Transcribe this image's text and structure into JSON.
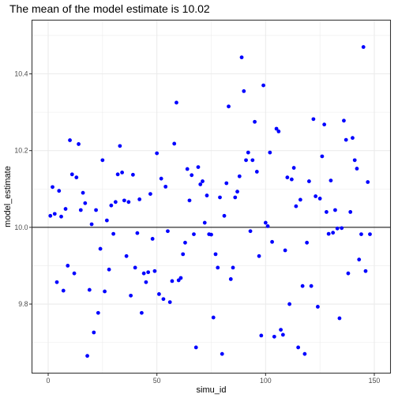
{
  "chart_data": {
    "type": "scatter",
    "title": "The mean of the model estimate is  10.02",
    "xlabel": "simu_id",
    "ylabel": "model_estimate",
    "xlim": [
      -7.45,
      157.45
    ],
    "ylim": [
      9.62,
      10.54
    ],
    "x_ticks": [
      0,
      50,
      100,
      150
    ],
    "x_tick_labels": [
      "0",
      "50",
      "100",
      "150"
    ],
    "y_ticks": [
      9.8,
      10.0,
      10.2,
      10.4
    ],
    "y_tick_labels": [
      "9.8",
      "10.0",
      "10.2",
      "10.4"
    ],
    "hline": 10.0,
    "grid": true,
    "legend": "none",
    "point_color": "#0000ff",
    "panel_background": "#ffffff",
    "grid_color": "#ebebeb",
    "points": [
      {
        "x": 1,
        "y": 10.03
      },
      {
        "x": 2,
        "y": 10.105
      },
      {
        "x": 3,
        "y": 10.035
      },
      {
        "x": 4,
        "y": 9.857
      },
      {
        "x": 5,
        "y": 10.095
      },
      {
        "x": 6,
        "y": 10.028
      },
      {
        "x": 7,
        "y": 9.835
      },
      {
        "x": 8,
        "y": 10.048
      },
      {
        "x": 9,
        "y": 9.9
      },
      {
        "x": 10,
        "y": 10.227
      },
      {
        "x": 11,
        "y": 10.138
      },
      {
        "x": 12,
        "y": 9.88
      },
      {
        "x": 13,
        "y": 10.13
      },
      {
        "x": 14,
        "y": 10.217
      },
      {
        "x": 15,
        "y": 10.045
      },
      {
        "x": 16,
        "y": 10.09
      },
      {
        "x": 17,
        "y": 10.063
      },
      {
        "x": 18,
        "y": 9.665
      },
      {
        "x": 19,
        "y": 9.837
      },
      {
        "x": 20,
        "y": 10.008
      },
      {
        "x": 21,
        "y": 9.726
      },
      {
        "x": 22,
        "y": 10.045
      },
      {
        "x": 23,
        "y": 9.777
      },
      {
        "x": 24,
        "y": 9.944
      },
      {
        "x": 25,
        "y": 10.175
      },
      {
        "x": 26,
        "y": 9.833
      },
      {
        "x": 27,
        "y": 10.018
      },
      {
        "x": 28,
        "y": 9.89
      },
      {
        "x": 29,
        "y": 10.057
      },
      {
        "x": 30,
        "y": 9.983
      },
      {
        "x": 31,
        "y": 10.066
      },
      {
        "x": 32,
        "y": 10.138
      },
      {
        "x": 33,
        "y": 10.212
      },
      {
        "x": 34,
        "y": 10.143
      },
      {
        "x": 35,
        "y": 10.07
      },
      {
        "x": 36,
        "y": 9.925
      },
      {
        "x": 37,
        "y": 10.066
      },
      {
        "x": 38,
        "y": 9.822
      },
      {
        "x": 39,
        "y": 10.137
      },
      {
        "x": 40,
        "y": 9.895
      },
      {
        "x": 41,
        "y": 9.985
      },
      {
        "x": 42,
        "y": 10.073
      },
      {
        "x": 43,
        "y": 9.777
      },
      {
        "x": 44,
        "y": 9.88
      },
      {
        "x": 45,
        "y": 9.857
      },
      {
        "x": 46,
        "y": 9.883
      },
      {
        "x": 47,
        "y": 10.087
      },
      {
        "x": 48,
        "y": 9.97
      },
      {
        "x": 49,
        "y": 9.886
      },
      {
        "x": 50,
        "y": 10.193
      },
      {
        "x": 51,
        "y": 9.826
      },
      {
        "x": 52,
        "y": 10.127
      },
      {
        "x": 53,
        "y": 9.813
      },
      {
        "x": 54,
        "y": 10.106
      },
      {
        "x": 55,
        "y": 9.99
      },
      {
        "x": 56,
        "y": 9.805
      },
      {
        "x": 57,
        "y": 9.86
      },
      {
        "x": 58,
        "y": 10.218
      },
      {
        "x": 59,
        "y": 10.325
      },
      {
        "x": 60,
        "y": 9.862
      },
      {
        "x": 61,
        "y": 9.868
      },
      {
        "x": 62,
        "y": 9.93
      },
      {
        "x": 63,
        "y": 9.96
      },
      {
        "x": 64,
        "y": 10.152
      },
      {
        "x": 65,
        "y": 10.07
      },
      {
        "x": 66,
        "y": 10.136
      },
      {
        "x": 67,
        "y": 9.982
      },
      {
        "x": 68,
        "y": 9.687
      },
      {
        "x": 69,
        "y": 10.157
      },
      {
        "x": 70,
        "y": 10.112
      },
      {
        "x": 71,
        "y": 10.12
      },
      {
        "x": 72,
        "y": 10.012
      },
      {
        "x": 73,
        "y": 10.083
      },
      {
        "x": 74,
        "y": 9.982
      },
      {
        "x": 75,
        "y": 9.981
      },
      {
        "x": 76,
        "y": 9.765
      },
      {
        "x": 77,
        "y": 9.93
      },
      {
        "x": 78,
        "y": 9.895
      },
      {
        "x": 79,
        "y": 10.078
      },
      {
        "x": 80,
        "y": 9.67
      },
      {
        "x": 81,
        "y": 10.03
      },
      {
        "x": 82,
        "y": 10.115
      },
      {
        "x": 83,
        "y": 10.315
      },
      {
        "x": 84,
        "y": 9.865
      },
      {
        "x": 85,
        "y": 9.895
      },
      {
        "x": 86,
        "y": 10.078
      },
      {
        "x": 87,
        "y": 10.093
      },
      {
        "x": 88,
        "y": 10.133
      },
      {
        "x": 89,
        "y": 10.443
      },
      {
        "x": 90,
        "y": 10.355
      },
      {
        "x": 91,
        "y": 10.175
      },
      {
        "x": 92,
        "y": 10.195
      },
      {
        "x": 93,
        "y": 9.99
      },
      {
        "x": 94,
        "y": 10.175
      },
      {
        "x": 95,
        "y": 10.275
      },
      {
        "x": 96,
        "y": 10.145
      },
      {
        "x": 97,
        "y": 9.925
      },
      {
        "x": 98,
        "y": 9.718
      },
      {
        "x": 99,
        "y": 10.37
      },
      {
        "x": 100,
        "y": 10.012
      },
      {
        "x": 101,
        "y": 10.003
      },
      {
        "x": 102,
        "y": 10.195
      },
      {
        "x": 103,
        "y": 9.962
      },
      {
        "x": 104,
        "y": 9.715
      },
      {
        "x": 105,
        "y": 10.257
      },
      {
        "x": 106,
        "y": 10.25
      },
      {
        "x": 107,
        "y": 9.733
      },
      {
        "x": 108,
        "y": 9.72
      },
      {
        "x": 109,
        "y": 9.94
      },
      {
        "x": 110,
        "y": 10.13
      },
      {
        "x": 111,
        "y": 9.8
      },
      {
        "x": 112,
        "y": 10.125
      },
      {
        "x": 113,
        "y": 10.155
      },
      {
        "x": 114,
        "y": 10.055
      },
      {
        "x": 115,
        "y": 9.687
      },
      {
        "x": 116,
        "y": 10.072
      },
      {
        "x": 117,
        "y": 9.847
      },
      {
        "x": 118,
        "y": 9.67
      },
      {
        "x": 119,
        "y": 9.96
      },
      {
        "x": 120,
        "y": 10.12
      },
      {
        "x": 121,
        "y": 9.847
      },
      {
        "x": 122,
        "y": 10.282
      },
      {
        "x": 123,
        "y": 10.081
      },
      {
        "x": 124,
        "y": 9.793
      },
      {
        "x": 125,
        "y": 10.075
      },
      {
        "x": 126,
        "y": 10.185
      },
      {
        "x": 127,
        "y": 10.268
      },
      {
        "x": 128,
        "y": 10.04
      },
      {
        "x": 129,
        "y": 9.983
      },
      {
        "x": 130,
        "y": 10.122
      },
      {
        "x": 131,
        "y": 9.986
      },
      {
        "x": 132,
        "y": 10.045
      },
      {
        "x": 133,
        "y": 9.997
      },
      {
        "x": 134,
        "y": 9.763
      },
      {
        "x": 135,
        "y": 9.998
      },
      {
        "x": 136,
        "y": 10.278
      },
      {
        "x": 137,
        "y": 10.228
      },
      {
        "x": 138,
        "y": 9.88
      },
      {
        "x": 139,
        "y": 10.04
      },
      {
        "x": 140,
        "y": 10.233
      },
      {
        "x": 141,
        "y": 10.175
      },
      {
        "x": 142,
        "y": 10.153
      },
      {
        "x": 143,
        "y": 9.916
      },
      {
        "x": 144,
        "y": 9.982
      },
      {
        "x": 145,
        "y": 10.47
      },
      {
        "x": 146,
        "y": 9.886
      },
      {
        "x": 147,
        "y": 10.118
      },
      {
        "x": 148,
        "y": 9.982
      }
    ]
  }
}
